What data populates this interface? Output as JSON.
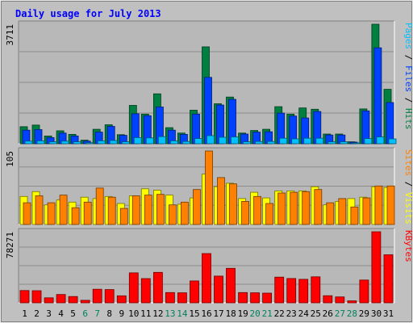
{
  "chart_data": {
    "type": "bar",
    "title": "Daily usage for July 2013",
    "colors": {
      "background": "#c0c0c0",
      "plot_background": "#b8b8b8",
      "hits": "#008040",
      "files": "#0040ff",
      "pages": "#00c0ff",
      "visits": "#ffff00",
      "sites": "#ff8000",
      "kbytes": "#ff0000",
      "weekend_label": "#00805c",
      "title": "#0000ff"
    },
    "categories": [
      "1",
      "2",
      "3",
      "4",
      "5",
      "6",
      "7",
      "8",
      "9",
      "10",
      "11",
      "12",
      "13",
      "14",
      "15",
      "16",
      "17",
      "18",
      "19",
      "20",
      "21",
      "22",
      "23",
      "24",
      "25",
      "26",
      "27",
      "28",
      "29",
      "30",
      "31"
    ],
    "weekend_days": [
      "6",
      "7",
      "13",
      "14",
      "20",
      "21",
      "27",
      "28"
    ],
    "panels": [
      {
        "name": "hits-files-pages",
        "ymax_label": "3711",
        "ymax": 3711,
        "legend": [
          {
            "text": "Pages",
            "color": "#00c0ff"
          },
          {
            "text": " / ",
            "color": "#000000"
          },
          {
            "text": "Files",
            "color": "#0040ff"
          },
          {
            "text": " / ",
            "color": "#000000"
          },
          {
            "text": "Hits",
            "color": "#008040"
          }
        ],
        "series": [
          {
            "name": "Hits",
            "color": "#008040",
            "values": [
              530,
              580,
              240,
              400,
              290,
              110,
              450,
              590,
              280,
              1190,
              920,
              1550,
              500,
              330,
              1040,
              3010,
              1240,
              1450,
              330,
              410,
              450,
              1150,
              920,
              1110,
              1070,
              300,
              300,
              60,
              1080,
              3711,
              1690
            ]
          },
          {
            "name": "Files",
            "color": "#0040ff",
            "values": [
              420,
              440,
              190,
              330,
              240,
              80,
              360,
              540,
              260,
              930,
              870,
              1140,
              420,
              290,
              920,
              2060,
              1200,
              1380,
              300,
              360,
              370,
              950,
              860,
              800,
              1000,
              270,
              270,
              50,
              1020,
              2980,
              1280
            ]
          },
          {
            "name": "Pages",
            "color": "#00c0ff",
            "values": [
              80,
              90,
              60,
              80,
              60,
              30,
              90,
              100,
              60,
              190,
              180,
              220,
              90,
              70,
              160,
              250,
              200,
              210,
              60,
              70,
              70,
              170,
              150,
              170,
              170,
              60,
              60,
              20,
              160,
              210,
              150
            ]
          }
        ]
      },
      {
        "name": "visits-sites",
        "ymax_label": "105",
        "ymax": 105,
        "legend": [
          {
            "text": "Sites",
            "color": "#ff8000"
          },
          {
            "text": " / ",
            "color": "#000000"
          },
          {
            "text": "Visits",
            "color": "#ffff00"
          }
        ],
        "series": [
          {
            "name": "Visits",
            "color": "#ffff00",
            "values": [
              40,
              47,
              28,
              35,
              32,
              39,
              37,
              40,
              30,
              41,
              51,
              49,
              42,
              29,
              38,
              72,
              54,
              59,
              37,
              46,
              38,
              48,
              48,
              48,
              54,
              28,
              33,
              37,
              39,
              54,
              53
            ]
          },
          {
            "name": "Sites",
            "color": "#ff8000",
            "values": [
              31,
              41,
              31,
              42,
              24,
              32,
              52,
              39,
              23,
              41,
              42,
              43,
              28,
              32,
              50,
              105,
              67,
              58,
              33,
              40,
              30,
              45,
              46,
              47,
              50,
              31,
              37,
              25,
              38,
              55,
              55
            ]
          }
        ]
      },
      {
        "name": "kbytes",
        "ymax_label": "78271",
        "ymax": 78271,
        "legend": [
          {
            "text": "KBytes",
            "color": "#ff0000"
          }
        ],
        "series": [
          {
            "name": "KBytes",
            "color": "#ff0000",
            "values": [
              13500,
              13300,
              5500,
              9200,
              6900,
              2800,
              14900,
              14600,
              7700,
              33000,
              26700,
              33500,
              11300,
              11000,
              24100,
              54300,
              29400,
              38000,
              11300,
              11000,
              10700,
              28300,
              26800,
              25900,
              28600,
              7800,
              6500,
              2100,
              25100,
              78271,
              52900
            ]
          }
        ]
      }
    ]
  }
}
